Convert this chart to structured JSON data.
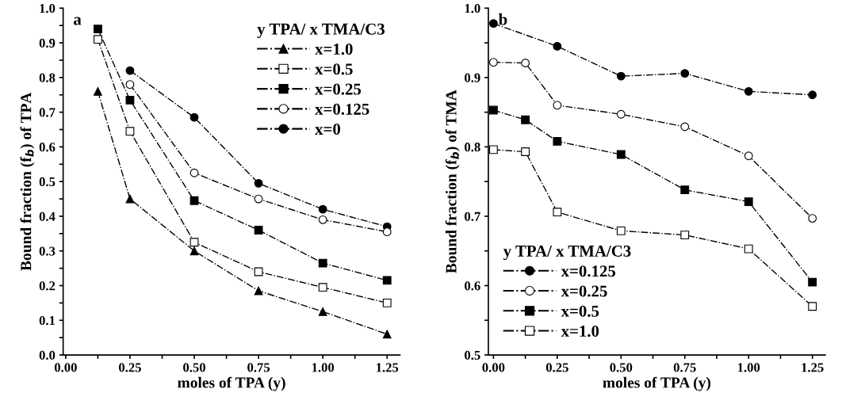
{
  "chart_data": [
    {
      "type": "line",
      "xlabel": "moles of TPA (y)",
      "ylabel": "Bound fraction (f$_{b}$) of TPA",
      "legend_title": "y TPA/ x TMA/C3",
      "legend": "top right",
      "line_style": "dashed",
      "grid": false,
      "annotations": [
        "a"
      ],
      "xlim": [
        -0.01,
        1.3
      ],
      "ylim": [
        0,
        1.0
      ],
      "xticks": [
        {
          "value": 0,
          "label": "0.00"
        },
        {
          "value": 0.125,
          "label": null
        },
        0.25,
        {
          "value": 0.375,
          "label": null
        },
        {
          "value": 0.5,
          "label": "0.50"
        },
        {
          "value": 0.625,
          "label": null
        },
        0.75,
        {
          "value": 0.875,
          "label": null
        },
        {
          "value": 1.0,
          "label": "1.00"
        },
        {
          "value": 1.125,
          "label": null
        },
        1.25
      ],
      "yticks": [
        {
          "value": 0,
          "label": "0.0"
        },
        {
          "value": 0.05,
          "label": null
        },
        0.1,
        {
          "value": 0.15,
          "label": null
        },
        0.2,
        {
          "value": 0.25,
          "label": null
        },
        0.3,
        {
          "value": 0.35,
          "label": null
        },
        0.4,
        {
          "value": 0.45,
          "label": null
        },
        0.5,
        {
          "value": 0.55,
          "label": null
        },
        0.6,
        {
          "value": 0.65,
          "label": null
        },
        0.7,
        {
          "value": 0.75,
          "label": null
        },
        0.8,
        {
          "value": 0.85,
          "label": null
        },
        0.9,
        {
          "value": 0.95,
          "label": null
        },
        {
          "value": 1.0,
          "label": "1.0"
        }
      ],
      "series": [
        {
          "name": "x=1.0",
          "color": "#000000",
          "marker": "triangle",
          "x": [
            0.125,
            0.25,
            0.5,
            0.75,
            1.0,
            1.25
          ],
          "values": [
            0.76,
            0.45,
            0.3,
            0.185,
            0.125,
            0.06
          ]
        },
        {
          "name": "x=0.5",
          "color": "#ffffff",
          "marker": "square",
          "x": [
            0.125,
            0.25,
            0.5,
            0.75,
            1.0,
            1.25
          ],
          "values": [
            0.91,
            0.645,
            0.325,
            0.24,
            0.195,
            0.15
          ]
        },
        {
          "name": "x=0.25",
          "color": "#000000",
          "marker": "square",
          "x": [
            0.125,
            0.25,
            0.5,
            0.75,
            1.0,
            1.25
          ],
          "values": [
            0.94,
            0.735,
            0.445,
            0.36,
            0.265,
            0.215
          ]
        },
        {
          "name": "x=0.125",
          "color": "#ffffff",
          "marker": "circle",
          "x": [
            0.25,
            0.5,
            0.75,
            1.0,
            1.25
          ],
          "values": [
            0.78,
            0.525,
            0.45,
            0.39,
            0.355
          ]
        },
        {
          "name": "x=0",
          "color": "#000000",
          "marker": "circle",
          "x": [
            0.25,
            0.5,
            0.75,
            1.0,
            1.25
          ],
          "values": [
            0.82,
            0.685,
            0.495,
            0.42,
            0.37
          ]
        }
      ]
    },
    {
      "type": "line",
      "xlabel": "moles of TPA (y)",
      "ylabel": "Bound fraction (f$_{b}$) of TMA",
      "legend_title": "y TPA/ x TMA/C3",
      "legend": "bottom left",
      "line_style": "dashed",
      "grid": false,
      "annotations": [
        "b"
      ],
      "xlim": [
        -0.02,
        1.3
      ],
      "ylim": [
        0.5,
        1.0
      ],
      "xticks": [
        {
          "value": 0,
          "label": "0.00"
        },
        {
          "value": 0.125,
          "label": null
        },
        0.25,
        {
          "value": 0.375,
          "label": null
        },
        {
          "value": 0.5,
          "label": "0.50"
        },
        {
          "value": 0.625,
          "label": null
        },
        0.75,
        {
          "value": 0.875,
          "label": null
        },
        {
          "value": 1.0,
          "label": "1.00"
        },
        {
          "value": 1.125,
          "label": null
        },
        1.25
      ],
      "yticks": [
        0.5,
        {
          "value": 0.55,
          "label": null
        },
        0.6,
        {
          "value": 0.65,
          "label": null
        },
        0.7,
        {
          "value": 0.75,
          "label": null
        },
        0.8,
        {
          "value": 0.85,
          "label": null
        },
        0.9,
        {
          "value": 0.95,
          "label": null
        },
        {
          "value": 1.0,
          "label": "1.0"
        }
      ],
      "series": [
        {
          "name": "x=0.125",
          "color": "#000000",
          "marker": "circle",
          "x": [
            0,
            0.25,
            0.5,
            0.75,
            1.0,
            1.25
          ],
          "values": [
            0.978,
            0.945,
            0.902,
            0.906,
            0.88,
            0.875
          ]
        },
        {
          "name": "x=0.25",
          "color": "#ffffff",
          "marker": "circle",
          "x": [
            0,
            0.125,
            0.25,
            0.5,
            0.75,
            1.0,
            1.25
          ],
          "values": [
            0.922,
            0.921,
            0.86,
            0.847,
            0.829,
            0.787,
            0.697
          ]
        },
        {
          "name": "x=0.5",
          "color": "#000000",
          "marker": "square",
          "x": [
            0,
            0.125,
            0.25,
            0.5,
            0.75,
            1.0,
            1.25
          ],
          "values": [
            0.853,
            0.839,
            0.808,
            0.789,
            0.738,
            0.721,
            0.605
          ]
        },
        {
          "name": "x=1.0",
          "color": "#ffffff",
          "marker": "square",
          "x": [
            0,
            0.125,
            0.25,
            0.5,
            0.75,
            1.0,
            1.25
          ],
          "values": [
            0.796,
            0.793,
            0.706,
            0.679,
            0.673,
            0.653,
            0.57
          ]
        }
      ]
    }
  ]
}
